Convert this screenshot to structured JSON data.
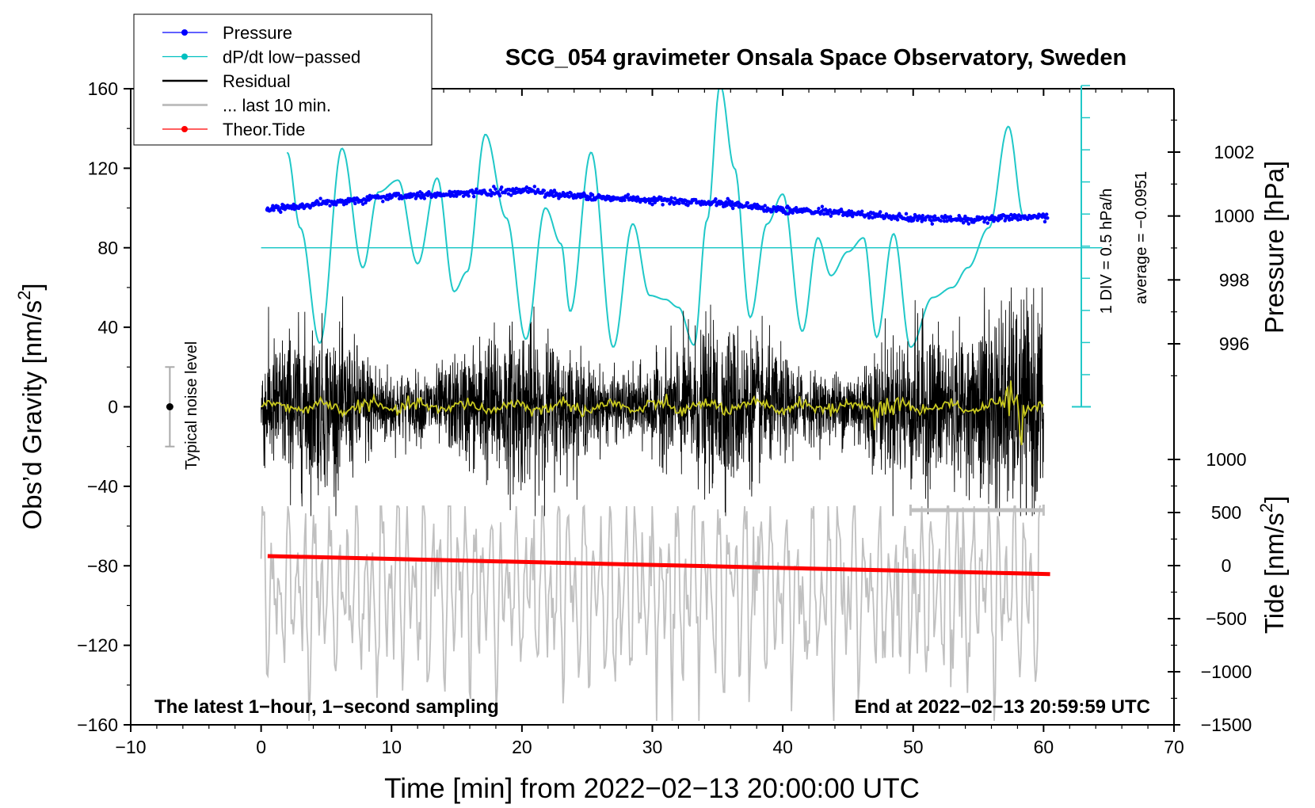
{
  "chart_data": {
    "type": "line",
    "title": "SCG_054 gravimeter Onsala Space Observatory, Sweden",
    "xlabel": "Time [min] from 2022−02−13 20:00:00 UTC",
    "ylabel": "Obs'd Gravity [nm/s²]",
    "ylabel_main": "Obs’d Gravity [nm/s",
    "ylabel_sup": "2",
    "ylabel_close": "]",
    "pressure_label": "Pressure [hPa]",
    "tide_label_main": "Tide [nm/s",
    "tide_label_sup": "2",
    "tide_label_close": "]",
    "xlim": [
      -10,
      70
    ],
    "ylim": [
      -160,
      160
    ],
    "x_ticks": [
      -10,
      0,
      10,
      20,
      30,
      40,
      50,
      60,
      70
    ],
    "x_tick_labels": [
      "−10",
      "0",
      "10",
      "20",
      "30",
      "40",
      "50",
      "60",
      "70"
    ],
    "y_ticks": [
      -160,
      -120,
      -80,
      -40,
      0,
      40,
      80,
      120,
      160
    ],
    "y_tick_labels": [
      "−160",
      "−120",
      "−80",
      "−40",
      "0",
      "40",
      "80",
      "120",
      "160"
    ],
    "pressure_axis": {
      "range": [
        994,
        1004
      ],
      "ticks": [
        996,
        998,
        1000,
        1002
      ],
      "tick_labels": [
        "996",
        "998",
        "1000",
        "1002"
      ]
    },
    "tide_axis": {
      "range": [
        -1500,
        1000
      ],
      "ticks": [
        -1500,
        -1000,
        -500,
        0,
        500,
        1000
      ],
      "tick_labels": [
        "−1500",
        "−1000",
        "−500",
        "0",
        "500",
        "1000"
      ]
    },
    "dpdt_scale": {
      "label1": "1 DIV = 0.5 hPa/h",
      "label2": "average = −0.0951",
      "zero_line_y": 80
    },
    "noise_level": {
      "label": "Typical noise level",
      "x": -7,
      "y": 0,
      "half_range": 20
    },
    "annotations": {
      "left": "The latest 1−hour, 1−second sampling",
      "right": "End at 2022−02−13 20:59:59 UTC"
    },
    "legend": [
      {
        "label": "Pressure",
        "color": "#0000ff",
        "marker": true
      },
      {
        "label": "dP/dt low−passed",
        "color": "#00c0c0",
        "marker": true
      },
      {
        "label": "Residual",
        "color": "#000000",
        "marker": false
      },
      {
        "label": "... last 10 min.",
        "color": "#c0c0c0",
        "marker": false
      },
      {
        "label": "Theor.Tide",
        "color": "#ff0000",
        "marker": true
      }
    ],
    "colors": {
      "pressure": "#0000ff",
      "dpdt": "#20c8c8",
      "residual": "#000000",
      "residual_smooth": "#c8c820",
      "last10": "#c0c0c0",
      "tide": "#ff0000"
    },
    "series": [
      {
        "name": "Pressure",
        "axis": "pressure",
        "x": [
          0.5,
          5,
          10,
          15,
          20,
          25,
          30,
          35,
          40,
          45,
          50,
          55,
          60
        ],
        "values": [
          1000.2,
          1000.4,
          1000.6,
          1000.7,
          1000.8,
          1000.6,
          1000.5,
          1000.4,
          1000.2,
          1000.1,
          999.9,
          999.9,
          1000.0
        ]
      },
      {
        "name": "dP/dt low-passed",
        "axis": "gravity-scaled",
        "x": [
          2,
          3,
          4.5,
          6.2,
          7.8,
          9,
          10.5,
          12,
          13.5,
          14.8,
          15.8,
          17.2,
          18.8,
          20.3,
          21.8,
          23,
          23.7,
          25.3,
          27,
          28.5,
          29.8,
          31,
          32,
          33.2,
          34.2,
          35.2,
          36.3,
          37.5,
          38.8,
          40,
          41.5,
          42.7,
          43.7,
          45,
          46.2,
          47.2,
          48.5,
          49.8,
          51.5,
          53,
          54.2,
          55.8,
          57.3,
          58.5
        ],
        "values": [
          128,
          90,
          32,
          130,
          70,
          108,
          114,
          72,
          115,
          58,
          68,
          137,
          95,
          34,
          100,
          82,
          48,
          128,
          30,
          92,
          56,
          54,
          50,
          31,
          94,
          162,
          120,
          45,
          92,
          107,
          38,
          85,
          66,
          78,
          85,
          35,
          87,
          30,
          55,
          60,
          70,
          90,
          141,
          95
        ]
      },
      {
        "name": "Theor.Tide",
        "axis": "tide",
        "x": [
          0.5,
          60.5
        ],
        "values": [
          90,
          -80
        ]
      }
    ]
  }
}
